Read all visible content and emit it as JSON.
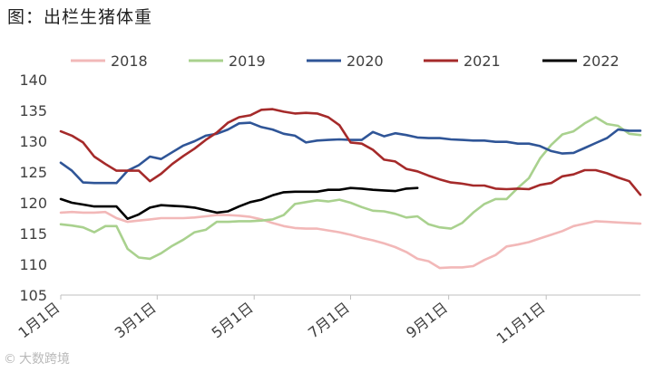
{
  "title": "图：出栏生猪体重",
  "watermark": {
    "text": "大数跨境",
    "icon": "copyright-logo-icon"
  },
  "chart_data": {
    "type": "line",
    "title": "图：出栏生猪体重",
    "xlabel": "",
    "ylabel": "",
    "ylim": [
      105,
      140
    ],
    "yticks": [
      105,
      110,
      115,
      120,
      125,
      130,
      135,
      140
    ],
    "xlim": [
      0,
      52
    ],
    "xticks": [
      {
        "x": 0,
        "label": "1月1日"
      },
      {
        "x": 8.65,
        "label": "3月1日"
      },
      {
        "x": 17.35,
        "label": "5月1日"
      },
      {
        "x": 26.0,
        "label": "7月1日"
      },
      {
        "x": 34.8,
        "label": "9月1日"
      },
      {
        "x": 43.55,
        "label": "11月1日"
      }
    ],
    "grid": false,
    "legend_position": "top",
    "series": [
      {
        "name": "2018",
        "color": "#f2b8b8",
        "x": [
          0,
          1,
          2,
          3,
          4,
          5,
          6,
          7,
          8,
          9,
          10,
          11,
          12,
          13,
          14,
          15,
          16,
          17,
          18,
          19,
          20,
          21,
          22,
          23,
          24,
          25,
          26,
          27,
          28,
          29,
          30,
          31,
          32,
          33,
          34,
          35,
          36,
          37,
          38,
          39,
          40,
          41,
          42,
          43,
          44,
          45,
          46,
          47,
          48,
          49,
          50,
          51,
          52
        ],
        "values": [
          118.4,
          118.5,
          118.4,
          118.4,
          118.5,
          117.5,
          116.9,
          117.1,
          117.3,
          117.5,
          117.5,
          117.5,
          117.6,
          117.8,
          118.0,
          118.0,
          117.9,
          117.7,
          117.3,
          116.7,
          116.2,
          115.9,
          115.8,
          115.8,
          115.5,
          115.2,
          114.8,
          114.3,
          113.9,
          113.4,
          112.8,
          112.0,
          110.9,
          110.5,
          109.4,
          109.5,
          109.5,
          109.7,
          110.7,
          111.5,
          112.9,
          113.2,
          113.6,
          114.2,
          114.8,
          115.4,
          116.2,
          116.6,
          117.0,
          116.9,
          116.8,
          116.7,
          116.6
        ]
      },
      {
        "name": "2019",
        "color": "#a9d18e",
        "x": [
          0,
          1,
          2,
          3,
          4,
          5,
          6,
          7,
          8,
          9,
          10,
          11,
          12,
          13,
          14,
          15,
          16,
          17,
          18,
          19,
          20,
          21,
          22,
          23,
          24,
          25,
          26,
          27,
          28,
          29,
          30,
          31,
          32,
          33,
          34,
          35,
          36,
          37,
          38,
          39,
          40,
          41,
          42,
          43,
          44,
          45,
          46,
          47,
          48,
          49,
          50,
          51,
          52
        ],
        "values": [
          116.5,
          116.3,
          116.0,
          115.2,
          116.2,
          116.2,
          112.5,
          111.1,
          110.9,
          111.8,
          113.0,
          114.0,
          115.2,
          115.6,
          116.9,
          116.9,
          117.0,
          117.0,
          117.1,
          117.3,
          118.0,
          119.8,
          120.1,
          120.4,
          120.2,
          120.5,
          120.0,
          119.3,
          118.7,
          118.6,
          118.2,
          117.6,
          117.8,
          116.5,
          116.0,
          115.8,
          116.7,
          118.4,
          119.8,
          120.6,
          120.6,
          122.4,
          124.0,
          127.2,
          129.4,
          131.1,
          131.6,
          132.9,
          133.9,
          132.8,
          132.5,
          131.2,
          131.0
        ]
      },
      {
        "name": "2020",
        "color": "#2f5597",
        "x": [
          0,
          1,
          2,
          3,
          4,
          5,
          6,
          7,
          8,
          9,
          10,
          11,
          12,
          13,
          14,
          15,
          16,
          17,
          18,
          19,
          20,
          21,
          22,
          23,
          24,
          25,
          26,
          27,
          28,
          29,
          30,
          31,
          32,
          33,
          34,
          35,
          36,
          37,
          38,
          39,
          40,
          41,
          42,
          43,
          44,
          45,
          46,
          47,
          48,
          49,
          50,
          51,
          52
        ],
        "values": [
          126.5,
          125.2,
          123.3,
          123.2,
          123.2,
          123.2,
          125.2,
          126.1,
          127.5,
          127.1,
          128.2,
          129.3,
          130.0,
          130.9,
          131.2,
          131.9,
          132.9,
          133.0,
          132.3,
          131.9,
          131.2,
          130.9,
          129.8,
          130.1,
          130.2,
          130.3,
          130.2,
          130.2,
          131.5,
          130.8,
          131.3,
          131.0,
          130.6,
          130.5,
          130.5,
          130.3,
          130.2,
          130.1,
          130.1,
          129.9,
          129.9,
          129.6,
          129.6,
          129.2,
          128.4,
          128.0,
          128.1,
          128.9,
          129.7,
          130.5,
          131.9,
          131.7,
          131.7
        ]
      },
      {
        "name": "2021",
        "color": "#a52a2a",
        "x": [
          0,
          1,
          2,
          3,
          4,
          5,
          6,
          7,
          8,
          9,
          10,
          11,
          12,
          13,
          14,
          15,
          16,
          17,
          18,
          19,
          20,
          21,
          22,
          23,
          24,
          25,
          26,
          27,
          28,
          29,
          30,
          31,
          32,
          33,
          34,
          35,
          36,
          37,
          38,
          39,
          40,
          41,
          42,
          43,
          44,
          45,
          46,
          47,
          48,
          49,
          50,
          51,
          52
        ],
        "values": [
          131.6,
          130.9,
          129.8,
          127.5,
          126.3,
          125.2,
          125.2,
          125.2,
          123.5,
          124.7,
          126.3,
          127.6,
          128.8,
          130.2,
          131.4,
          133.0,
          133.9,
          134.2,
          135.1,
          135.2,
          134.8,
          134.5,
          134.6,
          134.5,
          133.9,
          132.6,
          129.8,
          129.6,
          128.6,
          127.0,
          126.7,
          125.5,
          125.1,
          124.4,
          123.8,
          123.3,
          123.1,
          122.8,
          122.8,
          122.3,
          122.2,
          122.3,
          122.2,
          122.9,
          123.2,
          124.3,
          124.6,
          125.3,
          125.3,
          124.8,
          124.1,
          123.5,
          121.3
        ]
      },
      {
        "name": "2022",
        "color": "#000000",
        "x": [
          0,
          1,
          2,
          3,
          4,
          5,
          6,
          7,
          8,
          9,
          10,
          11,
          12,
          13,
          14,
          15,
          16,
          17,
          18,
          19,
          20,
          21,
          22,
          23,
          24,
          25,
          26,
          27,
          28,
          29,
          30,
          31,
          32
        ],
        "values": [
          120.6,
          120.0,
          119.7,
          119.4,
          119.4,
          119.4,
          117.4,
          118.1,
          119.2,
          119.6,
          119.5,
          119.4,
          119.2,
          118.8,
          118.4,
          118.6,
          119.4,
          120.1,
          120.5,
          121.2,
          121.7,
          121.8,
          121.8,
          121.8,
          122.1,
          122.1,
          122.4,
          122.3,
          122.1,
          122.0,
          121.9,
          122.3,
          122.4
        ]
      }
    ]
  }
}
